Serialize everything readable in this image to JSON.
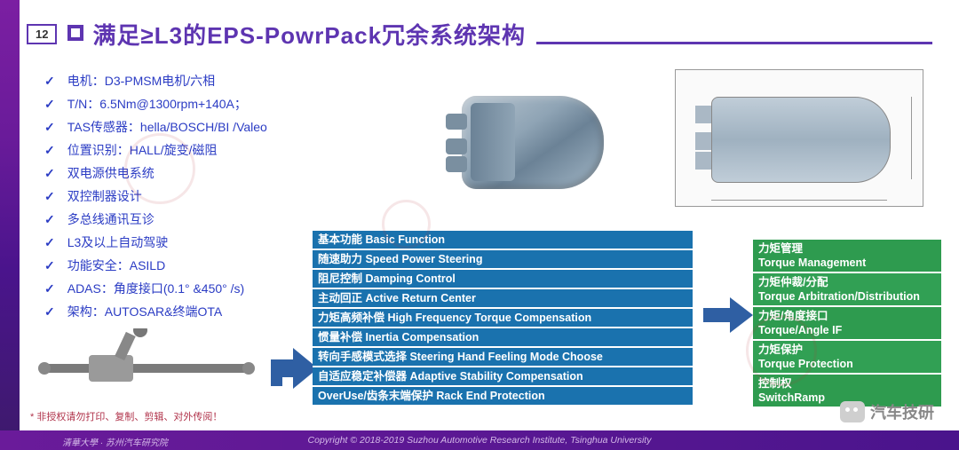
{
  "page_number": "12",
  "title": "满足≥L3的EPS-PowrPack冗余系统架构",
  "specs": [
    "电机：D3-PMSM电机/六相",
    "T/N：6.5Nm@1300rpm+140A；",
    "TAS传感器：hella/BOSCH/BI /Valeo",
    "位置识别：HALL/旋变/磁阻",
    "双电源供电系统",
    "双控制器设计",
    "多总线通讯互诊",
    "L3及以上自动驾驶",
    "功能安全：ASILD",
    "ADAS：角度接口(0.1° &450° /s)",
    "架构：AUTOSAR&终端OTA"
  ],
  "blue_rows": [
    "基本功能 Basic Function",
    "随速助力 Speed Power Steering",
    "阻尼控制 Damping Control",
    "主动回正 Active Return Center",
    "力矩高频补偿 High Frequency Torque Compensation",
    "惯量补偿 Inertia Compensation",
    "转向手感模式选择 Steering Hand Feeling Mode Choose",
    "自适应稳定补偿器 Adaptive Stability Compensation",
    "OverUse/齿条末端保护 Rack End Protection"
  ],
  "green_rows": [
    "力矩管理\nTorque Management",
    "力矩仲裁/分配\nTorque Arbitration/Distribution",
    "力矩/角度接口\nTorque/Angle IF",
    "力矩保护\nTorque Protection",
    "控制权\nSwitchRamp"
  ],
  "disclaimer": "* 非授权请勿打印、复制、剪辑、对外传阅！",
  "footer": "Copyright © 2018-2019 Suzhou Automotive Research Institute, Tsinghua University",
  "watermark_label": "汽车技研",
  "colors": {
    "purple": "#5e35b1",
    "blue_box": "#1a72ae",
    "green_box": "#2e9b4f",
    "arrow": "#2f5fa3",
    "spec_text": "#2b3cc4"
  }
}
